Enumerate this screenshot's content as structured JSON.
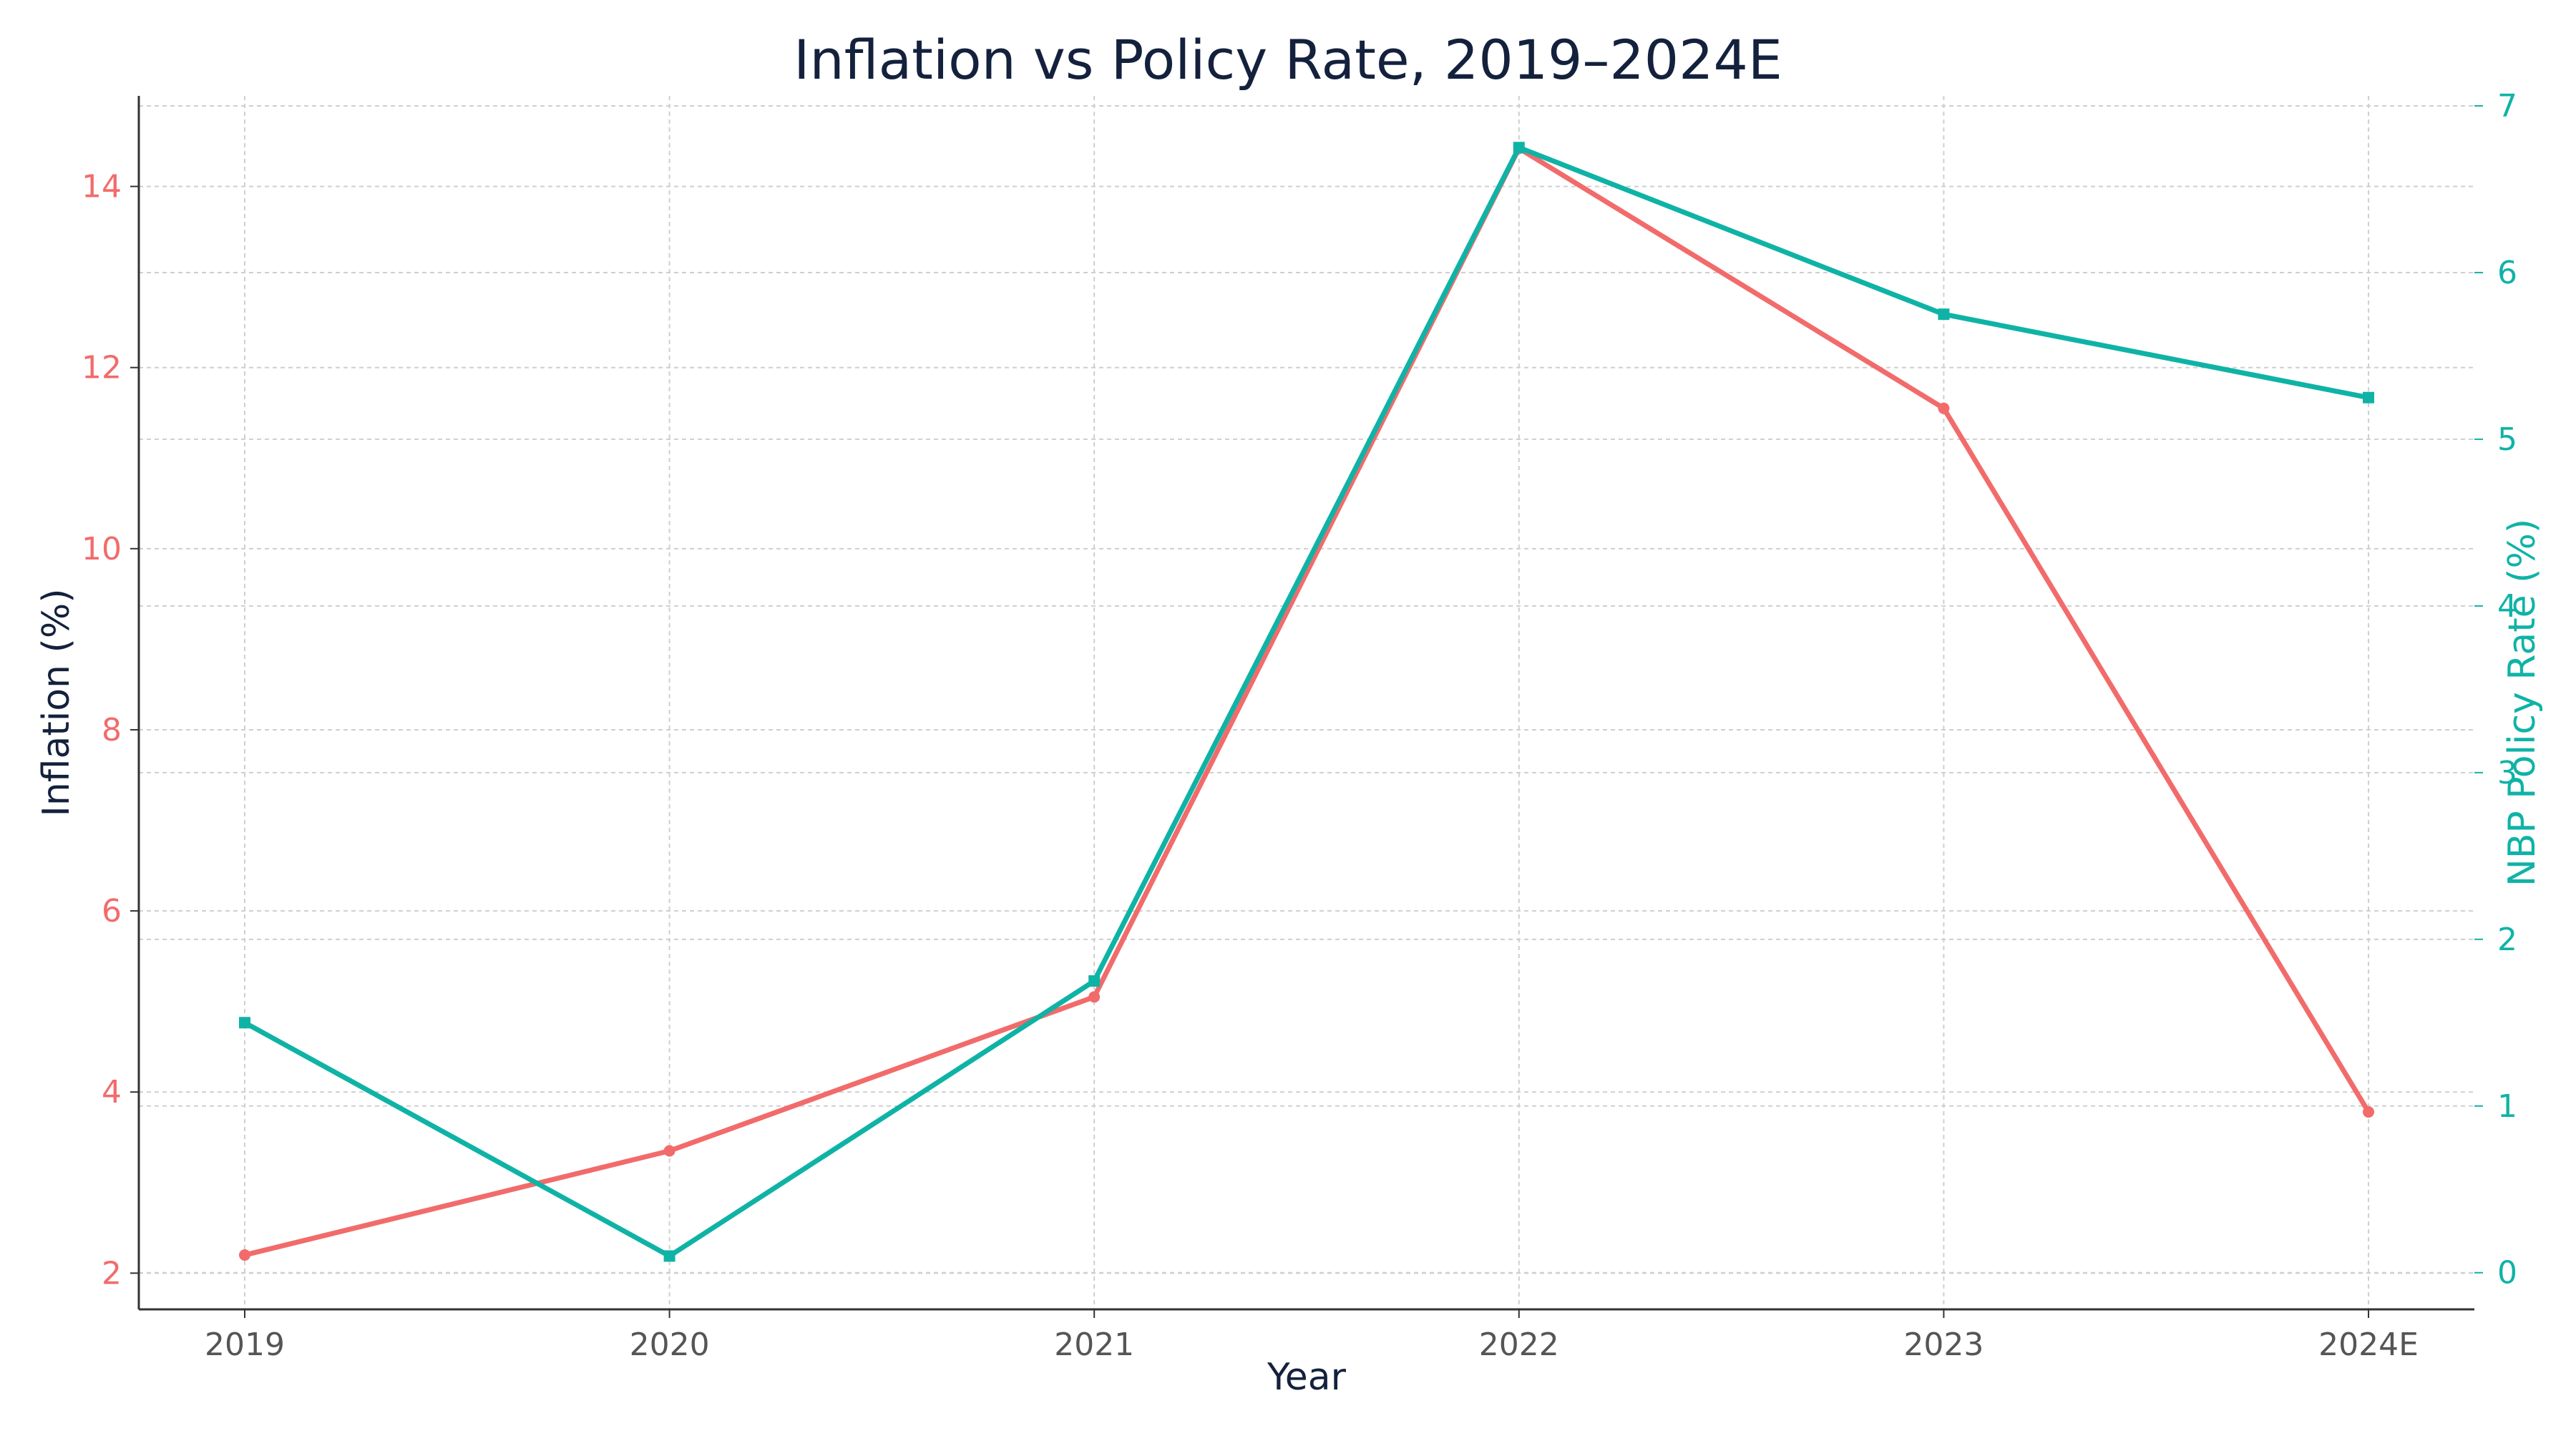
{
  "chart_data": {
    "type": "line",
    "title": "Inflation vs Policy Rate, 2019–2024E",
    "xlabel": "Year",
    "ylabel_left": "Inflation (%)",
    "ylabel_right": "NBP Policy Rate (%)",
    "categories": [
      "2019",
      "2020",
      "2021",
      "2022",
      "2023",
      "2024E"
    ],
    "ylim_left": [
      1.6,
      15.0
    ],
    "ylim_right": [
      -0.22,
      7.06
    ],
    "yticks_left": [
      2,
      4,
      6,
      8,
      10,
      12,
      14
    ],
    "yticks_right": [
      0,
      1,
      2,
      3,
      4,
      5,
      6,
      7
    ],
    "grid": true,
    "colors": {
      "inflation": "#f26b6b",
      "policy_rate": "#0fb3a6",
      "title": "#14213d"
    },
    "series": [
      {
        "axis": "left",
        "values": [
          2.2,
          3.35,
          5.05,
          14.42,
          11.55,
          3.78
        ]
      },
      {
        "axis": "right",
        "values": [
          1.5,
          0.1,
          1.75,
          6.75,
          5.75,
          5.25
        ]
      }
    ]
  }
}
